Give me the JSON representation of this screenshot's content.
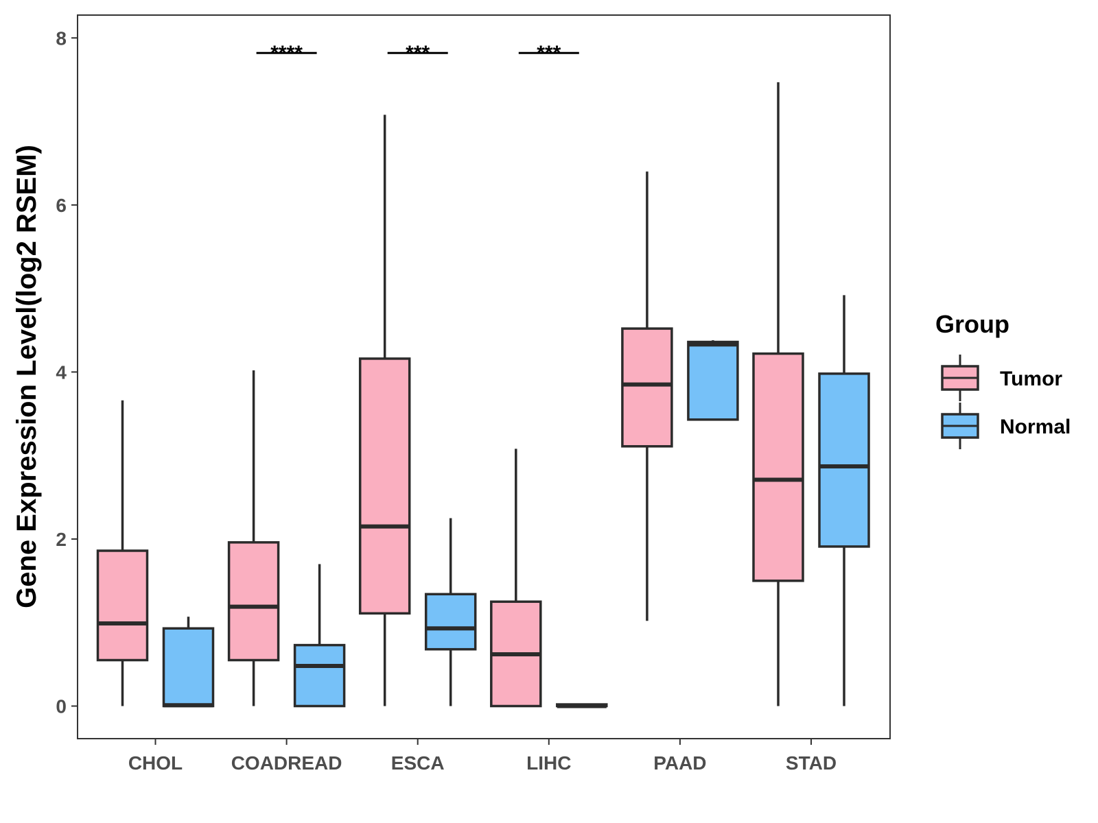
{
  "chart_data": {
    "type": "boxplot",
    "title": "",
    "xlabel": "",
    "ylabel": "Gene Expression Level(log2 RSEM)",
    "ylim": [
      -0.38,
      8.28
    ],
    "yticks": [
      0,
      2,
      4,
      6,
      8
    ],
    "categories": [
      "CHOL",
      "COADREAD",
      "ESCA",
      "LIHC",
      "PAAD",
      "STAD"
    ],
    "legend": {
      "title": "Group",
      "position": "right",
      "items": [
        {
          "label": "Tumor",
          "color": "#FAAFC0"
        },
        {
          "label": "Normal",
          "color": "#76C1F8"
        }
      ]
    },
    "series": [
      {
        "name": "Tumor",
        "color": "#FAAFC0",
        "boxes": [
          {
            "category": "CHOL",
            "min": 0.0,
            "q1": 0.55,
            "median": 0.99,
            "q3": 1.86,
            "max": 3.66
          },
          {
            "category": "COADREAD",
            "min": 0.0,
            "q1": 0.55,
            "median": 1.19,
            "q3": 1.96,
            "max": 4.02
          },
          {
            "category": "ESCA",
            "min": 0.0,
            "q1": 1.11,
            "median": 2.15,
            "q3": 4.16,
            "max": 7.08
          },
          {
            "category": "LIHC",
            "min": 0.0,
            "q1": 0.0,
            "median": 0.62,
            "q3": 1.25,
            "max": 3.08
          },
          {
            "category": "PAAD",
            "min": 1.02,
            "q1": 3.11,
            "median": 3.85,
            "q3": 4.52,
            "max": 6.4
          },
          {
            "category": "STAD",
            "min": 0.0,
            "q1": 1.5,
            "median": 2.71,
            "q3": 4.22,
            "max": 7.47
          }
        ]
      },
      {
        "name": "Normal",
        "color": "#76C1F8",
        "boxes": [
          {
            "category": "CHOL",
            "min": 0.0,
            "q1": 0.0,
            "median": 0.01,
            "q3": 0.93,
            "max": 1.07
          },
          {
            "category": "COADREAD",
            "min": 0.0,
            "q1": 0.0,
            "median": 0.48,
            "q3": 0.73,
            "max": 1.7
          },
          {
            "category": "ESCA",
            "min": 0.0,
            "q1": 0.68,
            "median": 0.93,
            "q3": 1.34,
            "max": 2.25
          },
          {
            "category": "LIHC",
            "min": 0.0,
            "q1": 0.0,
            "median": 0.0,
            "q3": 0.02,
            "max": 0.02
          },
          {
            "category": "PAAD",
            "min": 3.43,
            "q1": 3.43,
            "median": 4.33,
            "q3": 4.36,
            "max": 4.38
          },
          {
            "category": "STAD",
            "min": 0.0,
            "q1": 1.91,
            "median": 2.87,
            "q3": 3.98,
            "max": 4.92
          }
        ]
      }
    ],
    "significance": [
      {
        "category": "COADREAD",
        "label": "****",
        "y": 7.82
      },
      {
        "category": "ESCA",
        "label": "***",
        "y": 7.82
      },
      {
        "category": "LIHC",
        "label": "***",
        "y": 7.82
      }
    ]
  }
}
